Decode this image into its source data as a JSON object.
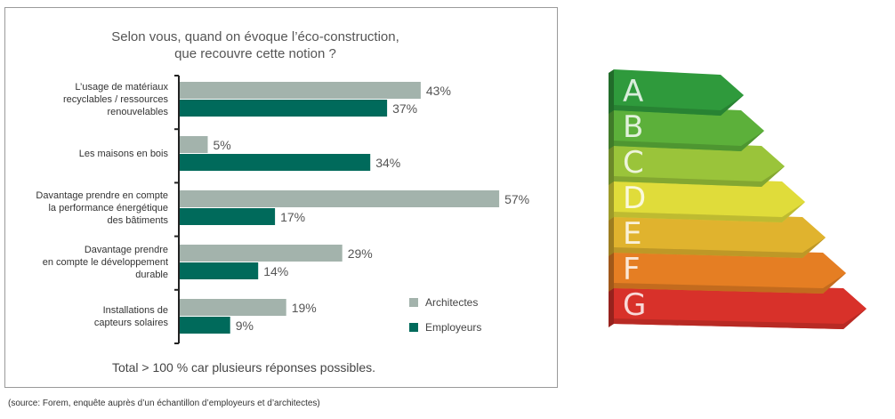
{
  "chart_data": {
    "type": "bar",
    "orientation": "horizontal",
    "title": "Selon vous, quand on évoque l’éco-construction, que recouvre cette notion ?",
    "title_lines": [
      "Selon vous, quand on évoque l’éco-construction,",
      "que recouvre cette notion ?"
    ],
    "categories": [
      [
        "L’usage de matériaux",
        "recyclables / ressources",
        "renouvelables"
      ],
      [
        "Les maisons en bois"
      ],
      [
        "Davantage prendre en compte",
        "la performance énergétique",
        "des bâtiments"
      ],
      [
        "Davantage prendre",
        "en compte le développement",
        "durable"
      ],
      [
        "Installations de",
        "capteurs solaires"
      ]
    ],
    "series": [
      {
        "name": "Architectes",
        "color": "#a3b3ac",
        "values": [
          43,
          5,
          57,
          29,
          19
        ]
      },
      {
        "name": "Employeurs",
        "color": "#006a5b",
        "values": [
          37,
          34,
          17,
          14,
          9
        ]
      }
    ],
    "value_suffix": "%",
    "xlim": [
      0,
      100
    ],
    "grid": false,
    "legend_position": "bottom-right",
    "note": "Total > 100 % car plusieurs réponses possibles."
  },
  "source": "(source: Forem, enquête auprès d’un échantillon d’employeurs et d’architectes)",
  "energy_label": {
    "grades": [
      "A",
      "B",
      "C",
      "D",
      "E",
      "F",
      "G"
    ],
    "colors": [
      "#2f9a3c",
      "#5cb03a",
      "#9ac43a",
      "#e0dc3a",
      "#e0b32e",
      "#e57e23",
      "#d8312a"
    ]
  }
}
